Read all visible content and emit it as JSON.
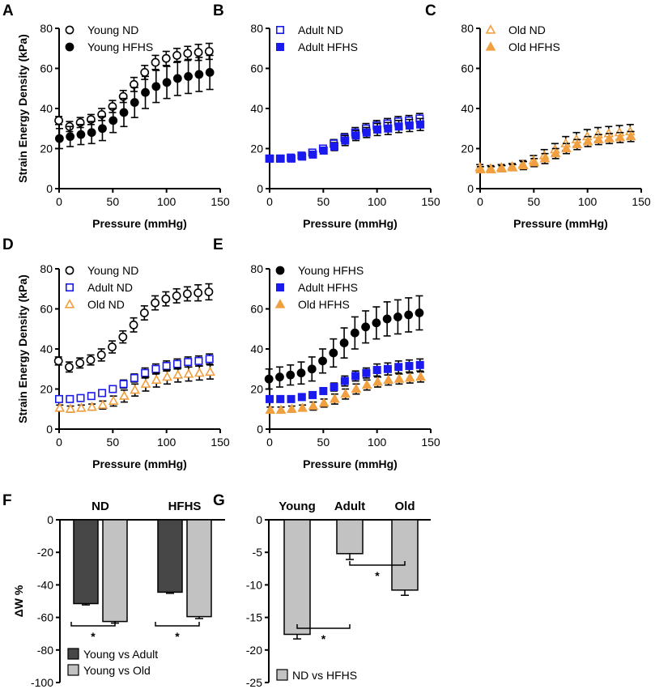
{
  "colors": {
    "young": "#000000",
    "adult": "#1a1aee",
    "old": "#f0a040",
    "dark_bar": "#474747",
    "light_bar": "#c2c2c2"
  },
  "chart_data": [
    {
      "type": "scatter",
      "panel": "A",
      "xlabel": "Pressure (mmHg)",
      "ylabel": "Strain Energy Density (kPa)",
      "xlim": [
        0,
        150
      ],
      "ylim": [
        0,
        80
      ],
      "xticks": [
        "0",
        "50",
        "100",
        "150"
      ],
      "yticks": [
        "0",
        "20",
        "40",
        "60",
        "80"
      ],
      "x": [
        0,
        10,
        20,
        30,
        40,
        50,
        60,
        70,
        80,
        90,
        100,
        110,
        120,
        130,
        140
      ],
      "series": [
        {
          "name": "Young ND",
          "group": "young",
          "fill": "open",
          "marker": "circle",
          "values": [
            34,
            31,
            33,
            34.5,
            37,
            41,
            46,
            52,
            58,
            63,
            65,
            66.5,
            67.5,
            68,
            68.5
          ],
          "errors": [
            2,
            2.5,
            2.5,
            2.5,
            3,
            3,
            3,
            3.5,
            3.5,
            3.5,
            3.5,
            3.5,
            3.5,
            4,
            4
          ]
        },
        {
          "name": "Young HFHS",
          "group": "young",
          "fill": "filled",
          "marker": "circle",
          "values": [
            25,
            26,
            27,
            28,
            30,
            34,
            38,
            43,
            48,
            51,
            53,
            55,
            56,
            57,
            58
          ],
          "errors": [
            5,
            5,
            5,
            5.5,
            6,
            6,
            7,
            7.5,
            8,
            8,
            8,
            8.5,
            8.5,
            8.5,
            8.5
          ]
        }
      ]
    },
    {
      "type": "scatter",
      "panel": "B",
      "xlabel": "Pressure (mmHg)",
      "ylabel": "",
      "xlim": [
        0,
        150
      ],
      "ylim": [
        0,
        80
      ],
      "xticks": [
        "0",
        "50",
        "100",
        "150"
      ],
      "yticks": [
        "0",
        "20",
        "40",
        "60",
        "80"
      ],
      "x": [
        0,
        10,
        20,
        30,
        40,
        50,
        60,
        70,
        80,
        90,
        100,
        110,
        120,
        130,
        140
      ],
      "series": [
        {
          "name": "Adult ND",
          "group": "adult",
          "fill": "open",
          "marker": "square",
          "values": [
            15,
            15,
            15.5,
            16.5,
            18,
            20,
            22.5,
            25.5,
            28,
            30,
            31.5,
            32.5,
            33.5,
            34,
            35
          ],
          "errors": [
            1,
            1,
            1,
            1.2,
            1.5,
            1.5,
            2,
            2,
            2.5,
            2.5,
            2.5,
            2.5,
            2.5,
            2.5,
            2.5
          ]
        },
        {
          "name": "Adult HFHS",
          "group": "adult",
          "fill": "filled",
          "marker": "square",
          "values": [
            15,
            15,
            15,
            16,
            17,
            19,
            21,
            24,
            26.5,
            28,
            29.5,
            30,
            31,
            31.5,
            32
          ],
          "errors": [
            1,
            1,
            1,
            1.2,
            1.5,
            1.5,
            2,
            2.5,
            2.5,
            2.5,
            3,
            3,
            3,
            3,
            3
          ]
        }
      ]
    },
    {
      "type": "scatter",
      "panel": "C",
      "xlabel": "Pressure (mmHg)",
      "ylabel": "",
      "xlim": [
        0,
        150
      ],
      "ylim": [
        0,
        80
      ],
      "xticks": [
        "0",
        "50",
        "100",
        "150"
      ],
      "yticks": [
        "0",
        "20",
        "40",
        "60",
        "80"
      ],
      "x": [
        0,
        10,
        20,
        30,
        40,
        50,
        60,
        70,
        80,
        90,
        100,
        110,
        120,
        130,
        140
      ],
      "series": [
        {
          "name": "Old ND",
          "group": "old",
          "fill": "open",
          "marker": "triangle",
          "values": [
            10.5,
            10,
            10.5,
            11,
            12,
            14,
            16.5,
            19.5,
            22.5,
            24.5,
            26,
            27,
            27.5,
            28,
            28.5
          ],
          "errors": [
            1.5,
            1.5,
            1.5,
            1.5,
            2,
            2.5,
            3,
            3,
            3.5,
            3.5,
            3.5,
            3.5,
            3.5,
            3.5,
            3.5
          ]
        },
        {
          "name": "Old HFHS",
          "group": "old",
          "fill": "filled",
          "marker": "triangle",
          "values": [
            9.5,
            9.5,
            10,
            10.5,
            11.5,
            13,
            15,
            17.5,
            20,
            22,
            23.5,
            24.5,
            25,
            25.5,
            26
          ],
          "errors": [
            1.5,
            1.5,
            1.5,
            1.5,
            2,
            2,
            2.5,
            2.5,
            2.5,
            2.5,
            2.5,
            2.5,
            2.5,
            2.5,
            2.5
          ]
        }
      ]
    },
    {
      "type": "scatter",
      "panel": "D",
      "xlabel": "Pressure (mmHg)",
      "ylabel": "Strain Energy Density (kPa)",
      "xlim": [
        0,
        150
      ],
      "ylim": [
        0,
        80
      ],
      "xticks": [
        "0",
        "50",
        "100",
        "150"
      ],
      "yticks": [
        "0",
        "20",
        "40",
        "60",
        "80"
      ],
      "x": [
        0,
        10,
        20,
        30,
        40,
        50,
        60,
        70,
        80,
        90,
        100,
        110,
        120,
        130,
        140
      ],
      "series": [
        {
          "name": "Young ND",
          "group": "young",
          "fill": "open",
          "marker": "circle",
          "values": [
            34,
            31,
            33,
            34.5,
            37,
            41,
            46,
            52,
            58,
            63,
            65,
            66.5,
            67.5,
            68,
            68.5
          ],
          "errors": [
            2,
            2.5,
            2.5,
            2.5,
            3,
            3,
            3,
            3.5,
            3.5,
            3.5,
            3.5,
            3.5,
            3.5,
            4,
            4
          ]
        },
        {
          "name": "Adult ND",
          "group": "adult",
          "fill": "open",
          "marker": "square",
          "values": [
            15,
            15,
            15.5,
            16.5,
            18,
            20,
            22.5,
            25.5,
            28,
            30,
            31.5,
            32.5,
            33.5,
            34,
            35
          ],
          "errors": [
            1,
            1,
            1,
            1.2,
            1.5,
            1.5,
            2,
            2,
            2.5,
            2.5,
            2.5,
            2.5,
            2.5,
            2.5,
            2.5
          ]
        },
        {
          "name": "Old ND",
          "group": "old",
          "fill": "open",
          "marker": "triangle",
          "values": [
            10.5,
            10,
            10.5,
            11,
            12,
            14,
            16.5,
            19.5,
            22.5,
            24.5,
            26,
            27,
            27.5,
            28,
            28.5
          ],
          "errors": [
            1.5,
            1.5,
            1.5,
            1.5,
            2,
            2.5,
            3,
            3,
            3.5,
            3.5,
            3.5,
            3.5,
            3.5,
            3.5,
            3.5
          ]
        }
      ]
    },
    {
      "type": "scatter",
      "panel": "E",
      "xlabel": "Pressure (mmHg)",
      "ylabel": "",
      "xlim": [
        0,
        150
      ],
      "ylim": [
        0,
        80
      ],
      "xticks": [
        "0",
        "50",
        "100",
        "150"
      ],
      "yticks": [
        "0",
        "20",
        "40",
        "60",
        "80"
      ],
      "x": [
        0,
        10,
        20,
        30,
        40,
        50,
        60,
        70,
        80,
        90,
        100,
        110,
        120,
        130,
        140
      ],
      "series": [
        {
          "name": "Young HFHS",
          "group": "young",
          "fill": "filled",
          "marker": "circle",
          "values": [
            25,
            26,
            27,
            28,
            30,
            34,
            38,
            43,
            48,
            51,
            53,
            55,
            56,
            57,
            58
          ],
          "errors": [
            5,
            5,
            5,
            5.5,
            6,
            6,
            7,
            7.5,
            8,
            8,
            8,
            8.5,
            8.5,
            8.5,
            8.5
          ]
        },
        {
          "name": "Adult HFHS",
          "group": "adult",
          "fill": "filled",
          "marker": "square",
          "values": [
            15,
            15,
            15,
            16,
            17,
            19,
            21,
            24,
            26.5,
            28,
            29.5,
            30,
            31,
            31.5,
            32
          ],
          "errors": [
            1,
            1,
            1,
            1.2,
            1.5,
            1.5,
            2,
            2.5,
            2.5,
            2.5,
            3,
            3,
            3,
            3,
            3
          ]
        },
        {
          "name": "Old HFHS",
          "group": "old",
          "fill": "filled",
          "marker": "triangle",
          "values": [
            9.5,
            9.5,
            10,
            10.5,
            11.5,
            13,
            15,
            17.5,
            20,
            22,
            23.5,
            24.5,
            25,
            25.5,
            26
          ],
          "errors": [
            1.5,
            1.5,
            1.5,
            1.5,
            2,
            2,
            2.5,
            2.5,
            2.5,
            2.5,
            2.5,
            2.5,
            2.5,
            2.5,
            2.5
          ]
        }
      ]
    },
    {
      "type": "bar",
      "panel": "F",
      "ylabel": "ΔW %",
      "ylim": [
        -100,
        0
      ],
      "yticks": [
        "0",
        "-20",
        "-40",
        "-60",
        "-80",
        "-100"
      ],
      "categories": [
        "ND",
        "HFHS"
      ],
      "series": [
        {
          "name": "Young vs Adult",
          "shade": "dark_bar",
          "values": [
            -51.5,
            -44.5
          ],
          "errors": [
            0.8,
            0.7
          ]
        },
        {
          "name": "Young vs Old",
          "shade": "light_bar",
          "values": [
            -62.5,
            -59.5
          ],
          "errors": [
            1,
            1.2
          ]
        }
      ],
      "significance": [
        "*",
        "*"
      ],
      "legend": [
        "Young vs Adult",
        "Young vs Old"
      ]
    },
    {
      "type": "bar",
      "panel": "G",
      "ylabel": "",
      "ylim": [
        -25,
        0
      ],
      "yticks": [
        "0",
        "-5",
        "-10",
        "-15",
        "-20",
        "-25"
      ],
      "categories": [
        "Young",
        "Adult",
        "Old"
      ],
      "series": [
        {
          "name": "ND vs HFHS",
          "shade": "light_bar",
          "values": [
            -17.6,
            -5.2,
            -10.8
          ],
          "errors": [
            0.7,
            0.9,
            0.8
          ]
        }
      ],
      "significance": [
        "*",
        "*"
      ],
      "legend": [
        "ND vs HFHS"
      ]
    }
  ]
}
